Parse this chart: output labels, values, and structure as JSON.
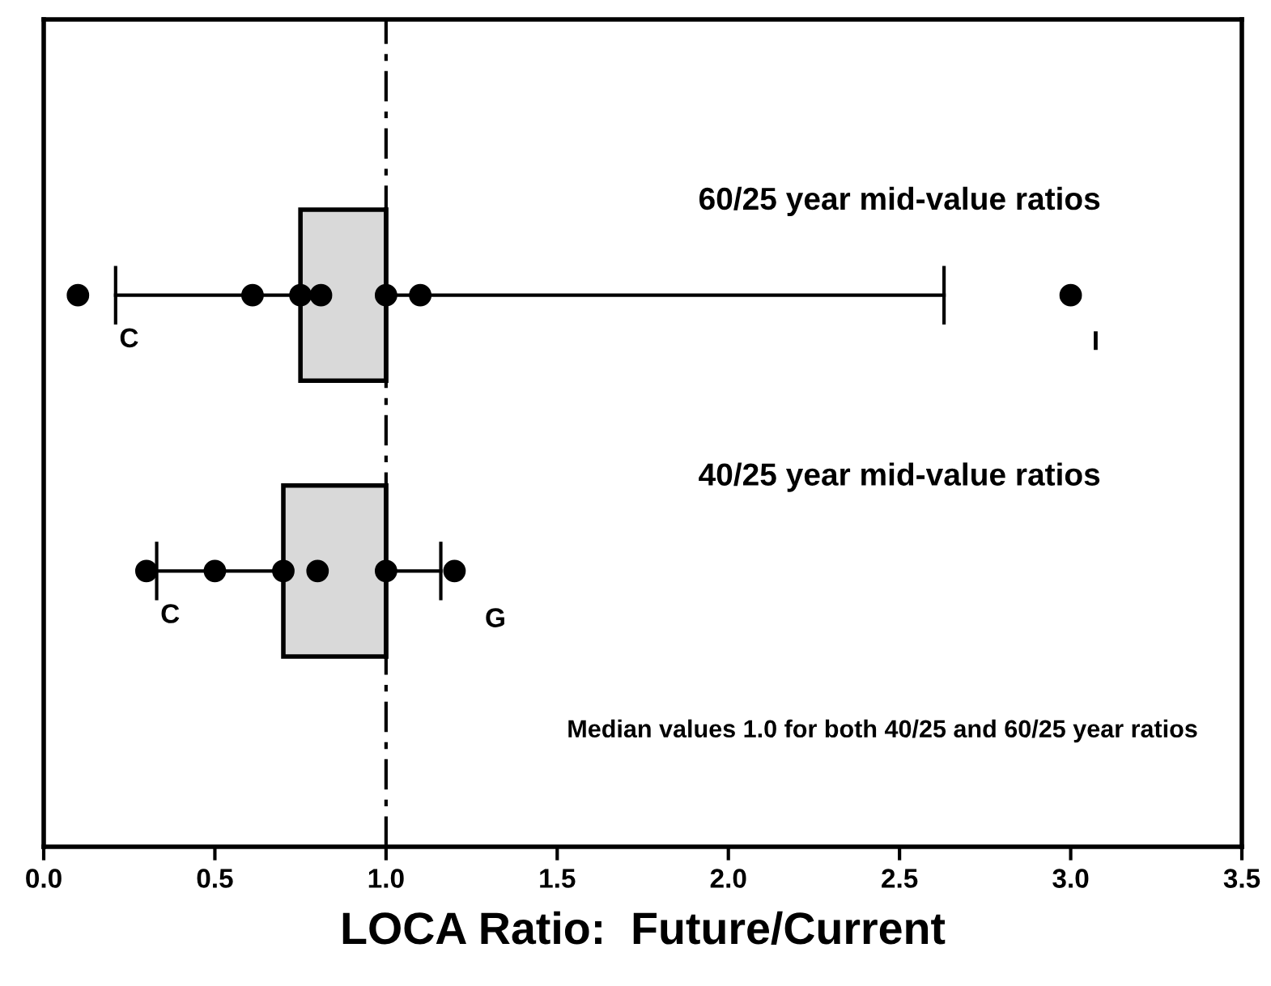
{
  "chart_data": {
    "type": "box",
    "orientation": "horizontal",
    "xlabel": "LOCA Ratio:  Future/Current",
    "categories": [
      "60/25 year mid-value ratios",
      "40/25 year mid-value ratios"
    ],
    "boxes": [
      {
        "low": 0.21,
        "q1": 0.75,
        "median": 1.0,
        "q3": 1.0,
        "high": 2.63
      },
      {
        "low": 0.33,
        "q1": 0.7,
        "median": 1.0,
        "q3": 1.0,
        "high": 1.16
      }
    ],
    "colors": [
      "#d9d9d9",
      "#d9d9d9"
    ],
    "series": [
      {
        "type": "scatter",
        "color": "#000000",
        "x": [
          "60/25 year mid-value ratios",
          "60/25 year mid-value ratios",
          "60/25 year mid-value ratios",
          "60/25 year mid-value ratios",
          "60/25 year mid-value ratios",
          "60/25 year mid-value ratios",
          "60/25 year mid-value ratios"
        ],
        "values": [
          0.1,
          0.61,
          0.75,
          0.81,
          1.0,
          1.1,
          3.0
        ]
      },
      {
        "type": "scatter",
        "color": "#000000",
        "x": [
          "40/25 year mid-value ratios",
          "40/25 year mid-value ratios",
          "40/25 year mid-value ratios",
          "40/25 year mid-value ratios",
          "40/25 year mid-value ratios",
          "40/25 year mid-value ratios"
        ],
        "values": [
          0.3,
          0.5,
          0.7,
          0.8,
          1.0,
          1.2
        ]
      }
    ],
    "ref_lines": [
      {
        "axis": "x",
        "value": 1.0,
        "line_style": "dashed",
        "color": "#000000"
      }
    ],
    "annotations": [
      "Median values 1.0 for both 40/25 and 60/25 year ratios",
      {
        "text": "C",
        "x": 0.21,
        "y": "60/25 year mid-value ratios"
      },
      "I",
      "G",
      {
        "text": "C",
        "x": 0.33,
        "y": "40/25 year mid-value ratios"
      }
    ],
    "xlim": [
      0,
      3.5
    ],
    "xticks": [
      {
        "value": 0,
        "label": "0.0"
      },
      {
        "value": 0.5,
        "label": "0.5"
      },
      {
        "value": 1.0,
        "label": "1.0"
      },
      {
        "value": 1.5,
        "label": "1.5"
      },
      {
        "value": 2.0,
        "label": "2.0"
      },
      {
        "value": 2.5,
        "label": "2.5"
      },
      {
        "value": 3.0,
        "label": "3.0"
      },
      {
        "value": 3.5,
        "label": "3.5"
      }
    ],
    "tick_labels": "x",
    "grid": false,
    "legend": false,
    "marker": "circle"
  }
}
